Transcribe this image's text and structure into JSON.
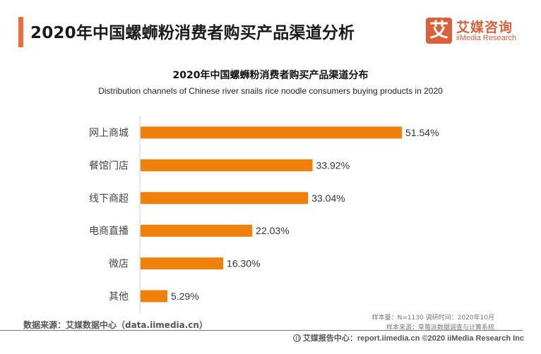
{
  "header": {
    "title": "2020年中国螺蛳粉消费者购买产品渠道分析",
    "logo_mark": "艾",
    "logo_cn": "艾媒咨询",
    "logo_en": "iiMedia Research"
  },
  "colors": {
    "accent": "#f26b3a",
    "bar": "#f0800c",
    "logo": "#d9603b"
  },
  "chart_data": {
    "type": "bar",
    "orientation": "horizontal",
    "title": "2020年中国螺蛳粉消费者购买产品渠道分布",
    "subtitle": "Distribution channels of Chinese river snails rice noodle consumers buying products in 2020",
    "categories": [
      "网上商城",
      "餐馆门店",
      "线下商超",
      "电商直播",
      "微店",
      "其他"
    ],
    "values": [
      51.54,
      33.92,
      33.04,
      22.03,
      16.3,
      5.29
    ],
    "labels": [
      "51.54%",
      "33.92%",
      "33.04%",
      "22.03%",
      "16.30%",
      "5.29%"
    ],
    "unit": "%",
    "xlabel": "",
    "ylabel": "",
    "xlim": [
      0,
      60
    ],
    "grid": false,
    "legend": "none"
  },
  "footer": {
    "source": "数据来源：艾媒数据中心（data.iimedia.cn）",
    "sample_info": "样本量：N=1130    调研时间：2020年10月",
    "sample_source": "样本来源：草莓派数据调查与计算系统",
    "report_center": "艾媒报告中心：report.iimedia.cn   ©2020  iiMedia Research  Inc"
  }
}
